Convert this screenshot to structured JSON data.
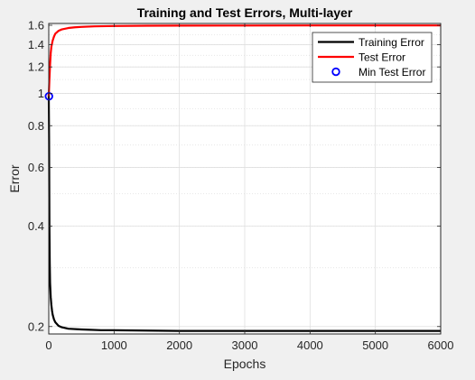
{
  "chart_data": {
    "type": "line",
    "title": "Training and Test Errors, Multi-layer",
    "xlabel": "Epochs",
    "ylabel": "Error",
    "xlim": [
      0,
      6000
    ],
    "ylim": [
      0.19,
      1.62
    ],
    "yscale": "log",
    "grid": true,
    "minor_grid": true,
    "legend_position": "top-right",
    "x_ticks": [
      0,
      1000,
      2000,
      3000,
      4000,
      5000,
      6000
    ],
    "x_tick_labels": [
      "0",
      "1000",
      "2000",
      "3000",
      "4000",
      "5000",
      "6000"
    ],
    "y_ticks": [
      0.2,
      0.4,
      0.6,
      0.8,
      1,
      1.2,
      1.4,
      1.6
    ],
    "y_tick_labels": [
      "0.2",
      "0.4",
      "0.6",
      "0.8",
      "1",
      "1.2",
      "1.4",
      "1.6"
    ],
    "series": [
      {
        "name": "Training Error",
        "style": "line",
        "color": "#000000",
        "x": [
          0,
          5,
          10,
          15,
          20,
          30,
          40,
          50,
          60,
          80,
          100,
          150,
          200,
          300,
          500,
          800,
          1000,
          2000,
          3000,
          4000,
          5000,
          6000
        ],
        "y": [
          0.99,
          0.72,
          0.4,
          0.31,
          0.27,
          0.245,
          0.232,
          0.223,
          0.217,
          0.21,
          0.206,
          0.201,
          0.199,
          0.197,
          0.196,
          0.195,
          0.195,
          0.194,
          0.194,
          0.194,
          0.194,
          0.194
        ]
      },
      {
        "name": "Test Error",
        "style": "line",
        "color": "#ff0000",
        "x": [
          0,
          10,
          20,
          30,
          40,
          60,
          80,
          100,
          150,
          200,
          300,
          400,
          500,
          700,
          1000,
          1500,
          2000,
          3000,
          4000,
          5000,
          6000
        ],
        "y": [
          0.98,
          1.1,
          1.22,
          1.32,
          1.38,
          1.44,
          1.48,
          1.51,
          1.54,
          1.555,
          1.57,
          1.578,
          1.582,
          1.588,
          1.592,
          1.595,
          1.596,
          1.597,
          1.598,
          1.598,
          1.598
        ]
      },
      {
        "name": "Min Test Error",
        "style": "marker",
        "marker": "circle",
        "color": "#0000ff",
        "x": [
          3
        ],
        "y": [
          0.98
        ]
      }
    ]
  }
}
